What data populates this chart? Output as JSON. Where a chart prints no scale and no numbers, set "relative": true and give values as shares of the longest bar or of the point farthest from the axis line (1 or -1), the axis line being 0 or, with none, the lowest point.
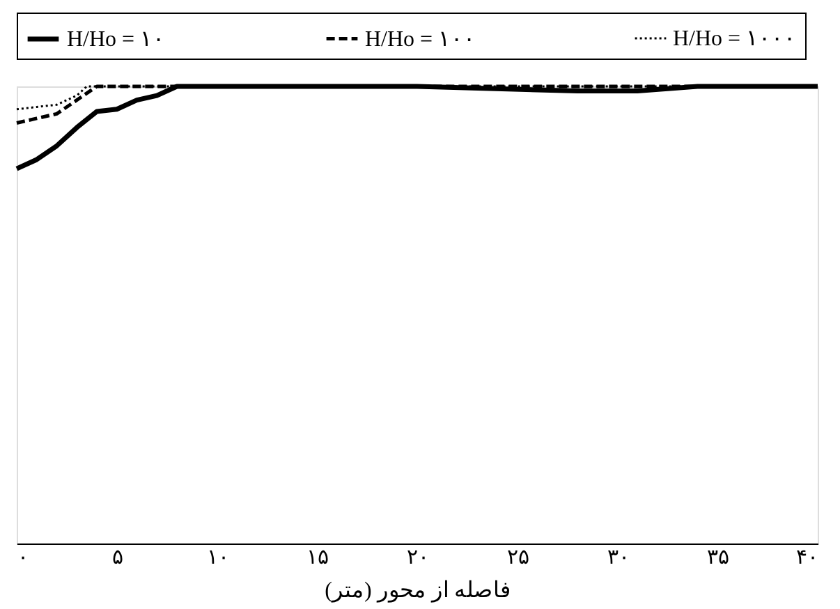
{
  "chart_data": {
    "type": "line",
    "relative": true,
    "xlabel": "فاصله از محور (متر)",
    "xlim": [
      0,
      40
    ],
    "xticks": [
      {
        "value": 0,
        "label": "۰"
      },
      {
        "value": 5,
        "label": "۵"
      },
      {
        "value": 10,
        "label": "۱۰"
      },
      {
        "value": 15,
        "label": "۱۵"
      },
      {
        "value": 20,
        "label": "۲۰"
      },
      {
        "value": 25,
        "label": "۲۵"
      },
      {
        "value": 30,
        "label": "۳۰"
      },
      {
        "value": 35,
        "label": "۳۵"
      },
      {
        "value": 40,
        "label": "۴۰"
      }
    ],
    "legend": "top",
    "grid": false,
    "series": [
      {
        "name": "H/Ho = ۱۰",
        "color": "#000000",
        "line_style": "solid",
        "x": [
          0,
          1,
          2,
          3,
          4,
          5,
          6,
          7,
          8,
          10,
          20,
          28,
          31,
          34,
          40
        ],
        "values": [
          0.82,
          0.84,
          0.87,
          0.91,
          0.945,
          0.95,
          0.97,
          0.98,
          1.0,
          1.0,
          1.0,
          0.99,
          0.99,
          1.0,
          1.0
        ]
      },
      {
        "name": "H/Ho = ۱۰۰",
        "color": "#000000",
        "line_style": "dashed",
        "x": [
          0,
          1,
          2,
          3,
          4,
          10,
          20,
          30,
          40
        ],
        "values": [
          0.92,
          0.93,
          0.94,
          0.97,
          1.0,
          1.0,
          1.0,
          1.0,
          1.0
        ]
      },
      {
        "name": "H/Ho = ۱۰۰۰",
        "color": "#000000",
        "line_style": "dotted",
        "x": [
          0,
          1,
          2,
          3,
          3.5,
          10,
          20,
          30,
          40
        ],
        "values": [
          0.95,
          0.955,
          0.96,
          0.98,
          1.0,
          1.0,
          1.0,
          1.0,
          1.0
        ]
      }
    ]
  }
}
